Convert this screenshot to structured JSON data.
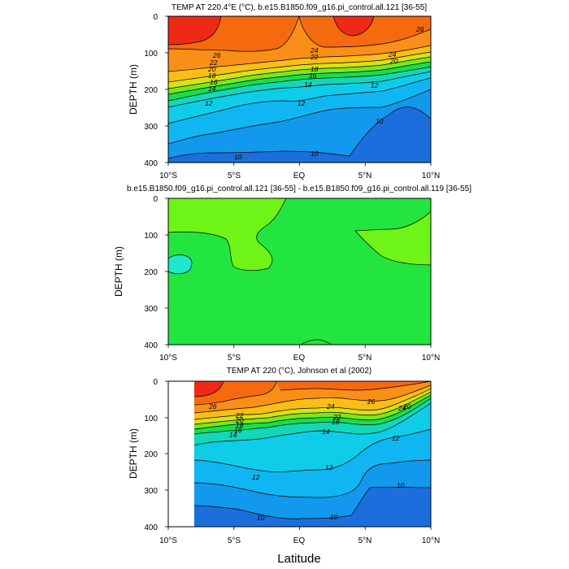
{
  "chart_data": [
    {
      "type": "heatmap",
      "title": "TEMP AT 220.4°E (°C), b.e15.B1850.f09_g16.pi_control.all.121 [36-55]",
      "xlabel": "",
      "ylabel": "DEPTH (m)",
      "xlim": [
        -10,
        10
      ],
      "ylim": [
        400,
        0
      ],
      "x_ticks": [
        -10,
        -5,
        0,
        5,
        10
      ],
      "x_tick_labels": [
        "10°S",
        "5°S",
        "EQ",
        "5°N",
        "10°N"
      ],
      "y_ticks": [
        0,
        100,
        200,
        300,
        400
      ],
      "y_tick_labels": [
        "0",
        "100",
        "200",
        "300",
        "400"
      ],
      "contour_labels": [
        "26",
        "26",
        "24",
        "24",
        "22",
        "22",
        "20",
        "20",
        "18",
        "18",
        "16",
        "16",
        "14",
        "14",
        "12",
        "12",
        "12",
        "10",
        "10",
        "10"
      ]
    },
    {
      "type": "heatmap",
      "title": "b.e15.B1850.f09_g16.pi_control.all.121 [36-55] - b.e15.B1850.f09_g16.pi_control.all.119 [36-55]",
      "xlabel": "",
      "ylabel": "DEPTH (m)",
      "xlim": [
        -10,
        10
      ],
      "ylim": [
        400,
        0
      ],
      "x_ticks": [
        -10,
        -5,
        0,
        5,
        10
      ],
      "x_tick_labels": [
        "10°S",
        "5°S",
        "EQ",
        "5°N",
        "10°N"
      ],
      "y_ticks": [
        0,
        100,
        200,
        300,
        400
      ],
      "y_tick_labels": [
        "0",
        "100",
        "200",
        "300",
        "400"
      ],
      "contour_labels": []
    },
    {
      "type": "heatmap",
      "title": "TEMP AT 220 (°C), Johnson et al (2002)",
      "xlabel": "Latitude",
      "ylabel": "DEPTH (m)",
      "xlim": [
        -10,
        10
      ],
      "ylim": [
        400,
        0
      ],
      "x_ticks": [
        -10,
        -5,
        0,
        5,
        10
      ],
      "x_tick_labels": [
        "10°S",
        "5°S",
        "EQ",
        "5°N",
        "10°N"
      ],
      "y_ticks": [
        0,
        100,
        200,
        300,
        400
      ],
      "y_tick_labels": [
        "0",
        "100",
        "200",
        "300",
        "400"
      ],
      "contour_labels": [
        "26",
        "26",
        "24",
        "24",
        "22",
        "22",
        "20",
        "20",
        "18",
        "18",
        "16",
        "14",
        "14",
        "12",
        "12",
        "12",
        "10",
        "10",
        "10"
      ]
    }
  ],
  "colors": {
    "t28": "#ee2a17",
    "t26": "#f56a0e",
    "t24": "#f98f18",
    "t22": "#fbbd16",
    "t20": "#d8e211",
    "t18": "#79e81d",
    "t16": "#14e14a",
    "t14": "#14d7b8",
    "t12": "#0fcde8",
    "t11": "#10b6f2",
    "t10": "#1298ec",
    "t9": "#1a6fdc",
    "diff_base": "#22e63f",
    "diff_pos": "#6ef417",
    "diff_neg": "#1fe8cd"
  }
}
